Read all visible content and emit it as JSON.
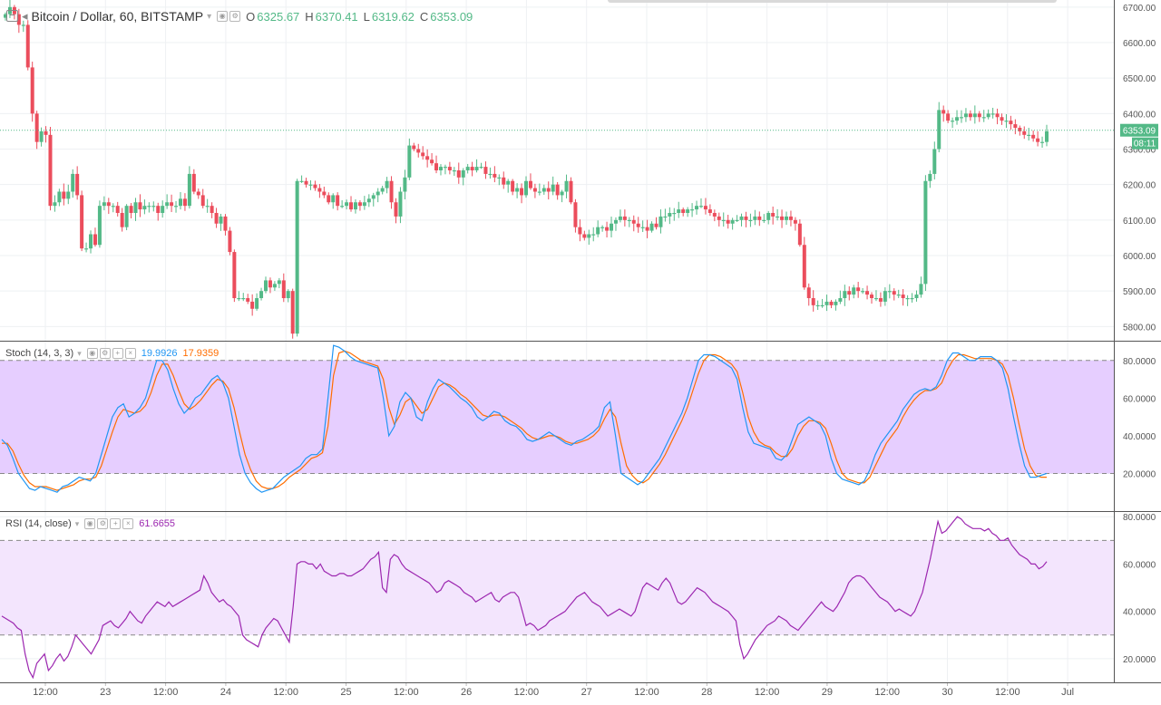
{
  "header": {
    "title": "Bitcoin / Dollar, 60, BITSTAMP",
    "ohlc": [
      {
        "label": "O",
        "value": "6325.67"
      },
      {
        "label": "H",
        "value": "6370.41"
      },
      {
        "label": "L",
        "value": "6319.62"
      },
      {
        "label": "C",
        "value": "6353.09"
      }
    ]
  },
  "price_tag": {
    "value": "6353.09",
    "countdown": "08:11"
  },
  "stoch_legend": {
    "title": "Stoch (14, 3, 3)",
    "k": "19.9926",
    "d": "17.9359"
  },
  "rsi_legend": {
    "title": "RSI (14, close)",
    "value": "61.6655"
  },
  "x_tick_labels": [
    "12:00",
    "23",
    "12:00",
    "24",
    "12:00",
    "25",
    "12:00",
    "26",
    "12:00",
    "27",
    "12:00",
    "28",
    "12:00",
    "29",
    "12:00",
    "30",
    "12:00",
    "Jul"
  ],
  "colors": {
    "up": "#53b987",
    "down": "#eb4d5c",
    "k_line": "#2196f3",
    "d_line": "#ff6d00",
    "rsi_line": "#9c27b0",
    "stoch_band": "#e6ceff",
    "rsi_band": "#f3e5fd",
    "price_line": "#53b987"
  },
  "chart_data": [
    {
      "type": "candlestick",
      "title": "Bitcoin / Dollar, 60, BITSTAMP",
      "ylim": [
        5760,
        6720
      ],
      "y_ticks": [
        "5800.00",
        "5900.00",
        "6000.00",
        "6100.00",
        "6200.00",
        "6300.00",
        "6400.00",
        "6500.00",
        "6600.00",
        "6700.00"
      ],
      "last_price": 6353.09,
      "x": [
        "12:00",
        "23",
        "12:00",
        "24",
        "12:00",
        "25",
        "12:00",
        "26",
        "12:00",
        "27",
        "12:00",
        "28",
        "12:00",
        "29",
        "12:00",
        "30",
        "12:00",
        "Jul"
      ],
      "closes": [
        6680,
        6700,
        6680,
        6650,
        6650,
        6530,
        6400,
        6320,
        6350,
        6340,
        6140,
        6150,
        6180,
        6160,
        6180,
        6230,
        6170,
        6020,
        6020,
        6060,
        6030,
        6140,
        6150,
        6140,
        6140,
        6120,
        6080,
        6140,
        6120,
        6150,
        6130,
        6140,
        6140,
        6140,
        6120,
        6140,
        6150,
        6140,
        6140,
        6160,
        6140,
        6230,
        6180,
        6170,
        6140,
        6140,
        6120,
        6090,
        6110,
        6070,
        6010,
        5880,
        5880,
        5880,
        5870,
        5850,
        5880,
        5900,
        5930,
        5910,
        5920,
        5930,
        5880,
        5900,
        5780,
        6210,
        6210,
        6200,
        6200,
        6190,
        6180,
        6170,
        6150,
        6170,
        6140,
        6140,
        6150,
        6130,
        6150,
        6140,
        6150,
        6160,
        6170,
        6180,
        6190,
        6210,
        6150,
        6110,
        6180,
        6220,
        6310,
        6300,
        6290,
        6280,
        6270,
        6260,
        6240,
        6250,
        6250,
        6240,
        6240,
        6220,
        6240,
        6250,
        6240,
        6250,
        6250,
        6230,
        6230,
        6220,
        6220,
        6200,
        6210,
        6180,
        6190,
        6170,
        6210,
        6190,
        6180,
        6180,
        6190,
        6180,
        6200,
        6170,
        6180,
        6210,
        6150,
        6080,
        6060,
        6050,
        6060,
        6060,
        6080,
        6080,
        6070,
        6090,
        6100,
        6110,
        6100,
        6100,
        6090,
        6080,
        6080,
        6070,
        6090,
        6080,
        6110,
        6110,
        6120,
        6120,
        6130,
        6120,
        6130,
        6130,
        6140,
        6140,
        6130,
        6120,
        6110,
        6100,
        6100,
        6090,
        6100,
        6100,
        6110,
        6100,
        6100,
        6110,
        6100,
        6100,
        6120,
        6110,
        6110,
        6100,
        6110,
        6100,
        6090,
        6030,
        5910,
        5880,
        5860,
        5860,
        5860,
        5870,
        5860,
        5870,
        5880,
        5900,
        5890,
        5910,
        5900,
        5900,
        5890,
        5880,
        5880,
        5870,
        5900,
        5900,
        5890,
        5890,
        5880,
        5880,
        5880,
        5890,
        5920,
        6210,
        6230,
        6300,
        6410,
        6400,
        6380,
        6380,
        6390,
        6390,
        6400,
        6390,
        6400,
        6390,
        6390,
        6400,
        6400,
        6390,
        6380,
        6380,
        6370,
        6360,
        6350,
        6340,
        6340,
        6330,
        6320,
        6320,
        6350
      ],
      "series": [
        {
          "name": "Stoch (14, 3, 3)",
          "label": "K",
          "value": 19.9926
        },
        {
          "name": "Stoch (14, 3, 3)",
          "label": "D",
          "value": 17.9359
        },
        {
          "name": "RSI (14, close)",
          "value": 61.6655
        }
      ]
    },
    {
      "type": "line",
      "title": "Stoch (14, 3, 3)",
      "ylim": [
        0,
        90
      ],
      "y_ticks": [
        "20.0000",
        "40.0000",
        "60.0000",
        "80.0000"
      ],
      "bands": [
        20,
        80
      ],
      "series": [
        {
          "name": "K",
          "values": [
            38,
            35,
            28,
            20,
            16,
            12,
            11,
            13,
            12,
            11,
            10,
            13,
            14,
            16,
            18,
            17,
            16,
            20,
            30,
            40,
            50,
            55,
            57,
            50,
            52,
            55,
            60,
            70,
            80,
            80,
            75,
            65,
            57,
            52,
            55,
            60,
            62,
            66,
            70,
            72,
            68,
            60,
            45,
            30,
            20,
            15,
            12,
            10,
            11,
            12,
            15,
            18,
            20,
            22,
            24,
            28,
            30,
            30,
            33,
            60,
            88,
            87,
            85,
            82,
            80,
            79,
            78,
            77,
            76,
            60,
            40,
            45,
            58,
            63,
            60,
            50,
            48,
            58,
            65,
            70,
            68,
            66,
            63,
            60,
            58,
            55,
            50,
            48,
            50,
            53,
            52,
            48,
            46,
            45,
            42,
            38,
            37,
            38,
            40,
            42,
            40,
            38,
            36,
            35,
            37,
            38,
            40,
            42,
            45,
            55,
            58,
            40,
            20,
            18,
            16,
            14,
            16,
            20,
            24,
            28,
            34,
            40,
            46,
            52,
            60,
            70,
            80,
            83,
            83,
            82,
            80,
            78,
            76,
            70,
            55,
            42,
            36,
            35,
            34,
            33,
            28,
            27,
            30,
            38,
            46,
            48,
            50,
            48,
            46,
            40,
            28,
            20,
            17,
            16,
            15,
            14,
            16,
            22,
            30,
            36,
            40,
            44,
            48,
            54,
            58,
            62,
            64,
            65,
            64,
            66,
            72,
            80,
            84,
            84,
            82,
            80,
            80,
            82,
            82,
            82,
            80,
            76,
            65,
            50,
            36,
            24,
            18,
            18,
            19,
            20
          ]
        },
        {
          "name": "D",
          "values": [
            36,
            36,
            32,
            25,
            19,
            15,
            13,
            13,
            13,
            12,
            11,
            12,
            13,
            14,
            16,
            17,
            17,
            18,
            24,
            33,
            42,
            50,
            54,
            53,
            52,
            53,
            56,
            63,
            72,
            78,
            78,
            72,
            64,
            57,
            54,
            56,
            59,
            63,
            67,
            70,
            69,
            65,
            55,
            42,
            30,
            22,
            16,
            13,
            12,
            12,
            13,
            15,
            18,
            20,
            22,
            25,
            28,
            29,
            31,
            45,
            72,
            84,
            85,
            84,
            82,
            80,
            79,
            78,
            77,
            70,
            55,
            46,
            51,
            58,
            60,
            56,
            52,
            54,
            60,
            66,
            68,
            67,
            65,
            62,
            60,
            57,
            54,
            51,
            50,
            51,
            51,
            50,
            48,
            46,
            44,
            41,
            39,
            38,
            39,
            40,
            40,
            39,
            37,
            36,
            36,
            37,
            38,
            40,
            43,
            49,
            54,
            50,
            36,
            24,
            19,
            16,
            15,
            17,
            21,
            25,
            30,
            36,
            42,
            48,
            55,
            64,
            73,
            80,
            83,
            83,
            82,
            80,
            78,
            74,
            63,
            50,
            42,
            37,
            35,
            34,
            31,
            29,
            29,
            33,
            40,
            45,
            48,
            48,
            47,
            44,
            36,
            27,
            20,
            17,
            16,
            15,
            15,
            18,
            24,
            30,
            36,
            40,
            44,
            50,
            55,
            59,
            62,
            64,
            64,
            65,
            68,
            75,
            80,
            83,
            83,
            82,
            81,
            81,
            81,
            81,
            80,
            78,
            72,
            60,
            46,
            33,
            24,
            19,
            18,
            18
          ]
        }
      ]
    },
    {
      "type": "line",
      "title": "RSI (14, close)",
      "ylim": [
        10,
        82
      ],
      "y_ticks": [
        "20.0000",
        "40.0000",
        "60.0000",
        "80.0000"
      ],
      "bands": [
        30,
        70
      ],
      "series": [
        {
          "name": "RSI",
          "values": [
            38,
            37,
            36,
            35,
            33,
            32,
            22,
            15,
            12,
            18,
            20,
            22,
            15,
            17,
            20,
            22,
            19,
            21,
            25,
            30,
            28,
            26,
            24,
            22,
            25,
            28,
            34,
            35,
            36,
            34,
            33,
            35,
            37,
            40,
            38,
            36,
            35,
            38,
            40,
            42,
            44,
            43,
            42,
            44,
            42,
            43,
            44,
            45,
            46,
            47,
            48,
            49,
            55,
            52,
            48,
            46,
            44,
            45,
            43,
            42,
            40,
            38,
            30,
            28,
            27,
            26,
            25,
            30,
            33,
            35,
            37,
            36,
            33,
            30,
            27,
            42,
            60,
            61,
            61,
            60,
            60,
            58,
            60,
            57,
            56,
            55,
            55,
            56,
            56,
            55,
            55,
            56,
            57,
            58,
            60,
            62,
            63,
            65,
            50,
            48,
            62,
            64,
            63,
            60,
            58,
            57,
            56,
            55,
            54,
            53,
            52,
            50,
            48,
            49,
            52,
            53,
            52,
            51,
            50,
            48,
            47,
            46,
            44,
            45,
            46,
            47,
            48,
            45,
            44,
            46,
            47,
            48,
            48,
            46,
            40,
            34,
            35,
            34,
            32,
            33,
            34,
            36,
            37,
            38,
            39,
            40,
            42,
            44,
            46,
            47,
            48,
            46,
            44,
            43,
            42,
            40,
            38,
            39,
            40,
            41,
            40,
            39,
            38,
            40,
            45,
            50,
            52,
            51,
            50,
            49,
            52,
            54,
            52,
            48,
            44,
            43,
            44,
            46,
            48,
            50,
            49,
            48,
            46,
            44,
            43,
            42,
            41,
            40,
            38,
            36,
            26,
            20,
            22,
            25,
            28,
            30,
            32,
            34,
            35,
            36,
            38,
            37,
            36,
            34,
            33,
            32,
            34,
            36,
            38,
            40,
            42,
            44,
            42,
            41,
            40,
            42,
            45,
            48,
            52,
            54,
            55,
            55,
            54,
            52,
            50,
            48,
            46,
            45,
            44,
            42,
            40,
            41,
            40,
            39,
            38,
            40,
            44,
            48,
            55,
            62,
            70,
            78,
            73,
            74,
            76,
            78,
            80,
            79,
            77,
            76,
            75,
            75,
            75,
            74,
            75,
            73,
            72,
            70,
            70,
            71,
            68,
            66,
            64,
            63,
            62,
            60,
            60,
            58,
            59,
            61
          ]
        }
      ]
    }
  ]
}
